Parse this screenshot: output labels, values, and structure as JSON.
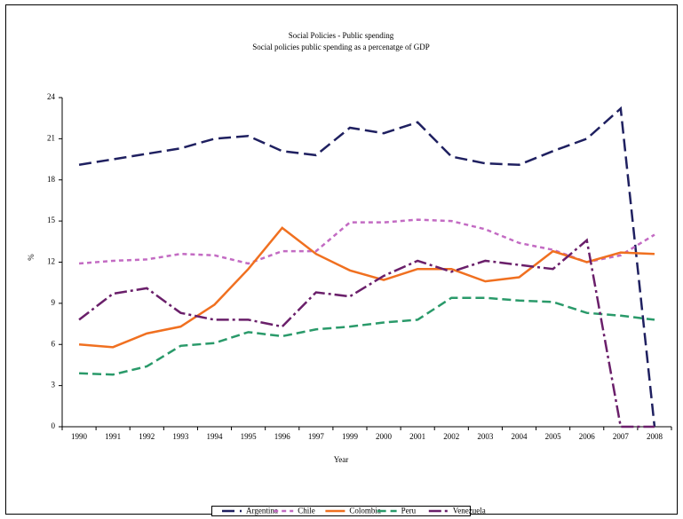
{
  "chart_data": {
    "type": "line",
    "title": "Social Policies - Public spending",
    "subtitle": "Social policies public spending as a percenatge of GDP",
    "x_label": "Year",
    "y_label": "%",
    "categories": [
      "1990",
      "1991",
      "1992",
      "1993",
      "1994",
      "1995",
      "1996",
      "1997",
      "1999",
      "2000",
      "2001",
      "2002",
      "2003",
      "2004",
      "2005",
      "2006",
      "2007",
      "2008"
    ],
    "ylim": [
      0,
      24
    ],
    "yticks": [
      0,
      3,
      6,
      9,
      12,
      15,
      18,
      21,
      24
    ],
    "legend": "bottom",
    "series": [
      {
        "name": "Argentina",
        "color": "#1f2060",
        "dash": "14,6",
        "values": [
          19.1,
          19.5,
          19.9,
          20.3,
          21.0,
          21.2,
          20.1,
          19.8,
          21.8,
          21.4,
          22.2,
          19.7,
          19.2,
          19.1,
          20.1,
          21.0,
          23.2,
          0
        ]
      },
      {
        "name": "Chile",
        "color": "#c36bc3",
        "dash": "5,4",
        "values": [
          11.9,
          12.1,
          12.2,
          12.6,
          12.5,
          11.9,
          12.8,
          12.8,
          14.9,
          14.9,
          15.1,
          15.0,
          14.4,
          13.4,
          12.9,
          12.0,
          12.5,
          14.0
        ]
      },
      {
        "name": "Colombia",
        "color": "#f07020",
        "dash": "",
        "values": [
          6.0,
          5.8,
          6.8,
          7.3,
          8.9,
          11.5,
          14.5,
          12.6,
          11.4,
          10.7,
          11.5,
          11.5,
          10.6,
          10.9,
          12.8,
          12.0,
          12.7,
          12.6
        ]
      },
      {
        "name": "Peru",
        "color": "#2a9a6a",
        "dash": "10,5",
        "values": [
          3.9,
          3.8,
          4.4,
          5.9,
          6.1,
          6.9,
          6.6,
          7.1,
          7.3,
          7.6,
          7.8,
          9.4,
          9.4,
          9.2,
          9.1,
          8.3,
          8.1,
          7.8
        ]
      },
      {
        "name": "Venezuela",
        "color": "#6a1f6a",
        "dash": "14,4,3,4",
        "values": [
          7.8,
          9.7,
          10.1,
          8.3,
          7.8,
          7.8,
          7.3,
          9.8,
          9.5,
          11.0,
          12.1,
          11.3,
          12.1,
          11.8,
          11.5,
          13.6,
          0,
          0
        ]
      }
    ]
  }
}
